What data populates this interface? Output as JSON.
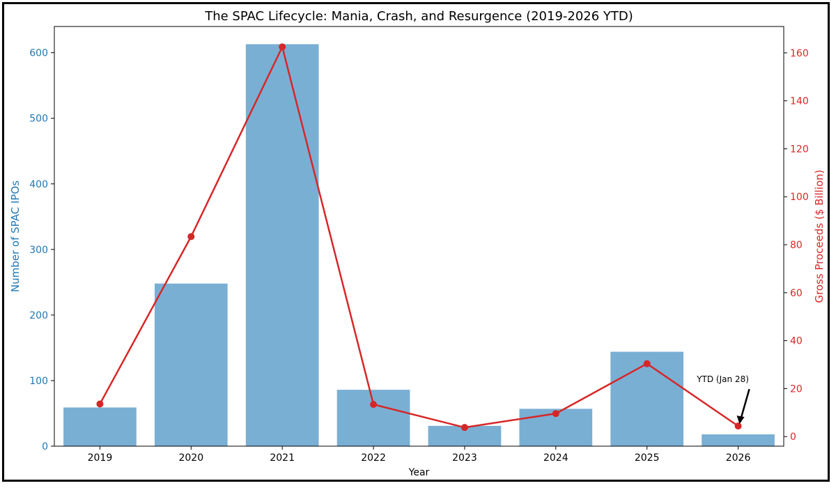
{
  "chart_data": {
    "type": "bar",
    "title": "The SPAC Lifecycle: Mania, Crash, and Resurgence (2019-2026 YTD)",
    "xlabel": "Year",
    "categories": [
      "2019",
      "2020",
      "2021",
      "2022",
      "2023",
      "2024",
      "2025",
      "2026"
    ],
    "y_left": {
      "label": "Number of SPAC IPOs",
      "ylim": [
        0,
        640
      ],
      "ticks": [
        0,
        100,
        200,
        300,
        400,
        500,
        600
      ],
      "color": "#1f77b4"
    },
    "y_right": {
      "label": "Gross Proceeds ($ Billion)",
      "ylim": [
        -4,
        171
      ],
      "ticks": [
        0,
        20,
        40,
        60,
        80,
        100,
        120,
        140,
        160
      ],
      "color": "#d62728"
    },
    "series": [
      {
        "name": "",
        "type": "bar",
        "axis": "left",
        "color": "#7aafd4",
        "values": [
          59,
          248,
          613,
          86,
          31,
          57,
          144,
          18
        ]
      },
      {
        "name": "",
        "type": "line",
        "axis": "right",
        "color": "#d62728",
        "values": [
          13.6,
          83.4,
          162.5,
          13.4,
          3.8,
          9.6,
          30.4,
          4.4
        ]
      }
    ],
    "annotations": [
      {
        "text": "YTD (Jan 28)",
        "category": "2026",
        "series": 1
      }
    ],
    "grid": false
  }
}
